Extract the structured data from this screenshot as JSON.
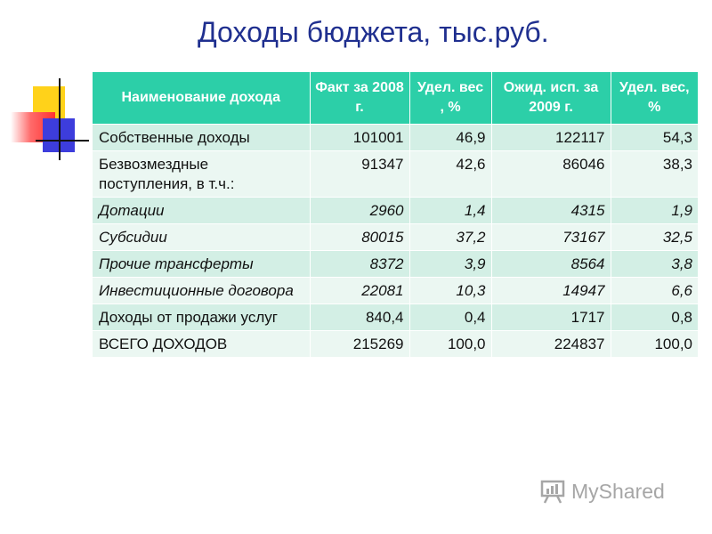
{
  "title": "Доходы бюджета, тыс.руб.",
  "table": {
    "headers": [
      "Наименование дохода",
      "Факт за 2008 г.",
      "Удел. вес , %",
      "Ожид. исп. за 2009 г.",
      "Удел. вес, %"
    ],
    "rows": [
      {
        "name": "Собственные доходы",
        "fact2008": "101001",
        "share2008": "46,9",
        "expected2009": "122117",
        "share2009": "54,3",
        "italic": false
      },
      {
        "name": "Безвозмездные поступления, в т.ч.:",
        "fact2008": "91347",
        "share2008": "42,6",
        "expected2009": "86046",
        "share2009": "38,3",
        "italic": false
      },
      {
        "name": "Дотации",
        "fact2008": "2960",
        "share2008": "1,4",
        "expected2009": "4315",
        "share2009": "1,9",
        "italic": true
      },
      {
        "name": "Субсидии",
        "fact2008": "80015",
        "share2008": "37,2",
        "expected2009": "73167",
        "share2009": "32,5",
        "italic": true
      },
      {
        "name": "Прочие трансферты",
        "fact2008": "8372",
        "share2008": "3,9",
        "expected2009": "8564",
        "share2009": "3,8",
        "italic": true
      },
      {
        "name": "Инвестиционные договора",
        "fact2008": "22081",
        "share2008": "10,3",
        "expected2009": "14947",
        "share2009": "6,6",
        "italic": true
      },
      {
        "name": "Доходы от продажи услуг",
        "fact2008": "840,4",
        "share2008": "0,4",
        "expected2009": "1717",
        "share2009": "0,8",
        "italic": false
      },
      {
        "name": "ВСЕГО ДОХОДОВ",
        "fact2008": "215269",
        "share2008": "100,0",
        "expected2009": "224837",
        "share2009": "100,0",
        "italic": false
      }
    ]
  },
  "watermark": {
    "text": "MyShared",
    "icon": "presentation-board-icon"
  },
  "colors": {
    "title": "#1f2f8f",
    "header_bg": "#2ccfa8",
    "row_odd": "#d3efe5",
    "row_even": "#ebf7f2",
    "watermark": "#a6a6a6"
  }
}
